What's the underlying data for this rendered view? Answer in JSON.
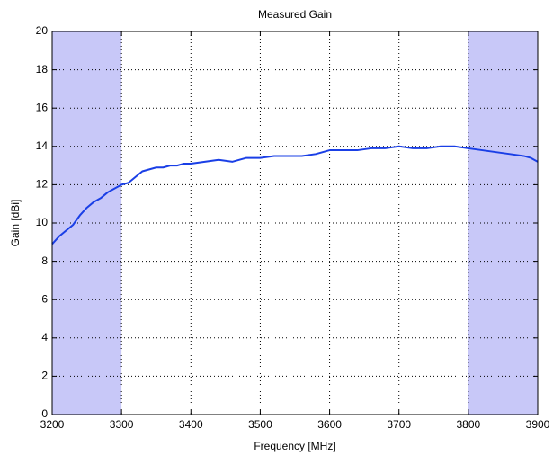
{
  "chart_data": {
    "type": "line",
    "title": "Measured Gain",
    "xlabel": "Frequency [MHz]",
    "ylabel": "Gain [dBi]",
    "x": [
      3200,
      3210,
      3220,
      3230,
      3240,
      3250,
      3260,
      3270,
      3280,
      3290,
      3300,
      3310,
      3320,
      3330,
      3340,
      3350,
      3360,
      3370,
      3380,
      3390,
      3400,
      3420,
      3440,
      3460,
      3480,
      3500,
      3520,
      3540,
      3560,
      3580,
      3600,
      3620,
      3640,
      3660,
      3680,
      3700,
      3720,
      3740,
      3760,
      3780,
      3800,
      3820,
      3840,
      3860,
      3880,
      3890,
      3900
    ],
    "series": [
      {
        "name": "Gain",
        "color": "#1a3fe6",
        "values": [
          8.9,
          9.3,
          9.6,
          9.9,
          10.4,
          10.8,
          11.1,
          11.3,
          11.6,
          11.8,
          12.0,
          12.1,
          12.4,
          12.7,
          12.8,
          12.9,
          12.9,
          13.0,
          13.0,
          13.1,
          13.1,
          13.2,
          13.3,
          13.2,
          13.4,
          13.4,
          13.5,
          13.5,
          13.5,
          13.6,
          13.8,
          13.8,
          13.8,
          13.9,
          13.9,
          14.0,
          13.9,
          13.9,
          14.0,
          14.0,
          13.9,
          13.8,
          13.7,
          13.6,
          13.5,
          13.4,
          13.2
        ]
      }
    ],
    "shaded_regions": [
      [
        3200,
        3300
      ],
      [
        3800,
        3900
      ]
    ],
    "shade_color": "#c8c8f8",
    "xlim": [
      3200,
      3900
    ],
    "xticks": [
      3200,
      3300,
      3400,
      3500,
      3600,
      3700,
      3800,
      3900
    ],
    "ylim": [
      0,
      20
    ],
    "yticks": [
      0,
      2,
      4,
      6,
      8,
      10,
      12,
      14,
      16,
      18,
      20
    ],
    "grid": true
  }
}
